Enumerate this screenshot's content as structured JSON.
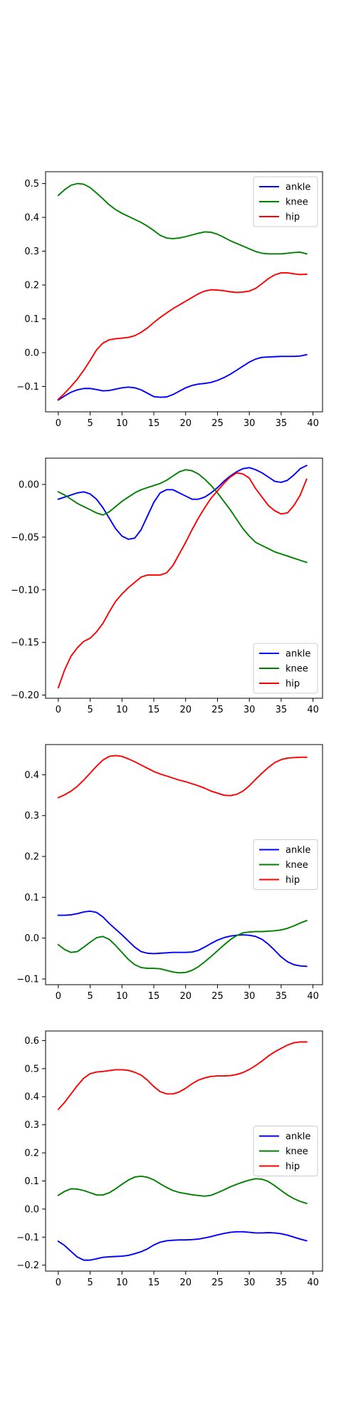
{
  "chart_data": [
    {
      "type": "line",
      "x": [
        0,
        1,
        2,
        3,
        4,
        5,
        6,
        7,
        8,
        9,
        10,
        11,
        12,
        13,
        14,
        15,
        16,
        17,
        18,
        19,
        20,
        21,
        22,
        23,
        24,
        25,
        26,
        27,
        28,
        29,
        30,
        31,
        32,
        33,
        34,
        35,
        36,
        37,
        38,
        39
      ],
      "xlim": [
        -2,
        41.5
      ],
      "ylim": [
        -0.175,
        0.535
      ],
      "xticks": [
        0,
        5,
        10,
        15,
        20,
        25,
        30,
        35,
        40
      ],
      "yticks": [
        -0.1,
        0.0,
        0.1,
        0.2,
        0.3,
        0.4,
        0.5
      ],
      "ytick_labels": [
        "−0.1",
        "0.0",
        "0.1",
        "0.2",
        "0.3",
        "0.4",
        "0.5"
      ],
      "legend_position": "top-right",
      "series": [
        {
          "name": "ankle",
          "color": "#0000ff",
          "values": [
            -0.14,
            -0.128,
            -0.117,
            -0.11,
            -0.106,
            -0.106,
            -0.109,
            -0.113,
            -0.112,
            -0.108,
            -0.104,
            -0.102,
            -0.104,
            -0.11,
            -0.12,
            -0.13,
            -0.132,
            -0.131,
            -0.124,
            -0.114,
            -0.104,
            -0.097,
            -0.093,
            -0.091,
            -0.088,
            -0.082,
            -0.074,
            -0.064,
            -0.052,
            -0.04,
            -0.028,
            -0.019,
            -0.014,
            -0.013,
            -0.012,
            -0.011,
            -0.011,
            -0.011,
            -0.01,
            -0.006
          ]
        },
        {
          "name": "knee",
          "color": "#008000",
          "values": [
            0.465,
            0.482,
            0.495,
            0.5,
            0.498,
            0.488,
            0.472,
            0.455,
            0.437,
            0.423,
            0.412,
            0.403,
            0.394,
            0.385,
            0.374,
            0.361,
            0.347,
            0.339,
            0.337,
            0.339,
            0.343,
            0.348,
            0.353,
            0.357,
            0.356,
            0.35,
            0.341,
            0.331,
            0.323,
            0.315,
            0.307,
            0.299,
            0.294,
            0.292,
            0.292,
            0.292,
            0.294,
            0.296,
            0.297,
            0.292
          ]
        },
        {
          "name": "hip",
          "color": "#ff0000",
          "values": [
            -0.138,
            -0.12,
            -0.1,
            -0.078,
            -0.052,
            -0.023,
            0.008,
            0.028,
            0.038,
            0.041,
            0.043,
            0.045,
            0.05,
            0.06,
            0.073,
            0.089,
            0.104,
            0.117,
            0.13,
            0.141,
            0.152,
            0.163,
            0.174,
            0.182,
            0.186,
            0.185,
            0.183,
            0.18,
            0.178,
            0.179,
            0.182,
            0.19,
            0.204,
            0.219,
            0.23,
            0.236,
            0.236,
            0.233,
            0.231,
            0.232
          ]
        }
      ]
    },
    {
      "type": "line",
      "x": [
        0,
        1,
        2,
        3,
        4,
        5,
        6,
        7,
        8,
        9,
        10,
        11,
        12,
        13,
        14,
        15,
        16,
        17,
        18,
        19,
        20,
        21,
        22,
        23,
        24,
        25,
        26,
        27,
        28,
        29,
        30,
        31,
        32,
        33,
        34,
        35,
        36,
        37,
        38,
        39
      ],
      "xlim": [
        -2,
        41.5
      ],
      "ylim": [
        -0.203,
        0.025
      ],
      "xticks": [
        0,
        5,
        10,
        15,
        20,
        25,
        30,
        35,
        40
      ],
      "yticks": [
        -0.2,
        -0.15,
        -0.1,
        -0.05,
        0.0
      ],
      "ytick_labels": [
        "−0.20",
        "−0.15",
        "−0.10",
        "−0.05",
        "0.00"
      ],
      "legend_position": "lower-right",
      "series": [
        {
          "name": "ankle",
          "color": "#0000ff",
          "values": [
            -0.014,
            -0.012,
            -0.01,
            -0.008,
            -0.007,
            -0.009,
            -0.014,
            -0.022,
            -0.032,
            -0.042,
            -0.049,
            -0.052,
            -0.051,
            -0.043,
            -0.03,
            -0.017,
            -0.008,
            -0.005,
            -0.005,
            -0.008,
            -0.011,
            -0.014,
            -0.014,
            -0.012,
            -0.008,
            -0.003,
            0.003,
            0.008,
            0.012,
            0.015,
            0.016,
            0.014,
            0.011,
            0.007,
            0.003,
            0.002,
            0.004,
            0.009,
            0.015,
            0.018
          ]
        },
        {
          "name": "knee",
          "color": "#008000",
          "values": [
            -0.007,
            -0.01,
            -0.014,
            -0.018,
            -0.021,
            -0.024,
            -0.027,
            -0.029,
            -0.026,
            -0.021,
            -0.016,
            -0.012,
            -0.008,
            -0.005,
            -0.003,
            -0.001,
            0.001,
            0.004,
            0.008,
            0.012,
            0.014,
            0.013,
            0.01,
            0.005,
            -0.001,
            -0.008,
            -0.016,
            -0.024,
            -0.033,
            -0.042,
            -0.049,
            -0.055,
            -0.058,
            -0.061,
            -0.064,
            -0.066,
            -0.068,
            -0.07,
            -0.072,
            -0.074
          ]
        },
        {
          "name": "hip",
          "color": "#ff0000",
          "values": [
            -0.193,
            -0.176,
            -0.163,
            -0.155,
            -0.149,
            -0.146,
            -0.14,
            -0.132,
            -0.121,
            -0.111,
            -0.104,
            -0.098,
            -0.093,
            -0.088,
            -0.086,
            -0.086,
            -0.086,
            -0.084,
            -0.077,
            -0.066,
            -0.055,
            -0.043,
            -0.032,
            -0.022,
            -0.013,
            -0.006,
            0.001,
            0.007,
            0.011,
            0.01,
            0.006,
            -0.004,
            -0.012,
            -0.02,
            -0.025,
            -0.028,
            -0.027,
            -0.02,
            -0.01,
            0.005
          ]
        }
      ]
    },
    {
      "type": "line",
      "x": [
        0,
        1,
        2,
        3,
        4,
        5,
        6,
        7,
        8,
        9,
        10,
        11,
        12,
        13,
        14,
        15,
        16,
        17,
        18,
        19,
        20,
        21,
        22,
        23,
        24,
        25,
        26,
        27,
        28,
        29,
        30,
        31,
        32,
        33,
        34,
        35,
        36,
        37,
        38,
        39
      ],
      "xlim": [
        -2,
        41.5
      ],
      "ylim": [
        -0.114,
        0.474
      ],
      "xticks": [
        0,
        5,
        10,
        15,
        20,
        25,
        30,
        35,
        40
      ],
      "yticks": [
        -0.1,
        0.0,
        0.1,
        0.2,
        0.3,
        0.4
      ],
      "ytick_labels": [
        "−0.1",
        "0.0",
        "0.1",
        "0.2",
        "0.3",
        "0.4"
      ],
      "legend_position": "center-right",
      "series": [
        {
          "name": "ankle",
          "color": "#0000ff",
          "values": [
            0.056,
            0.056,
            0.057,
            0.06,
            0.064,
            0.066,
            0.063,
            0.052,
            0.036,
            0.022,
            0.008,
            -0.007,
            -0.022,
            -0.033,
            -0.037,
            -0.038,
            -0.037,
            -0.036,
            -0.035,
            -0.035,
            -0.035,
            -0.034,
            -0.03,
            -0.022,
            -0.013,
            -0.005,
            0.001,
            0.005,
            0.007,
            0.008,
            0.007,
            0.004,
            -0.003,
            -0.015,
            -0.03,
            -0.046,
            -0.058,
            -0.065,
            -0.068,
            -0.069
          ]
        },
        {
          "name": "knee",
          "color": "#008000",
          "values": [
            -0.016,
            -0.028,
            -0.035,
            -0.033,
            -0.022,
            -0.01,
            0.001,
            0.004,
            -0.003,
            -0.018,
            -0.035,
            -0.052,
            -0.065,
            -0.072,
            -0.074,
            -0.074,
            -0.075,
            -0.079,
            -0.083,
            -0.085,
            -0.084,
            -0.079,
            -0.07,
            -0.058,
            -0.045,
            -0.031,
            -0.017,
            -0.004,
            0.006,
            0.013,
            0.015,
            0.016,
            0.016,
            0.017,
            0.018,
            0.02,
            0.024,
            0.03,
            0.037,
            0.043
          ]
        },
        {
          "name": "hip",
          "color": "#ff0000",
          "values": [
            0.344,
            0.351,
            0.36,
            0.372,
            0.387,
            0.404,
            0.421,
            0.436,
            0.445,
            0.447,
            0.445,
            0.439,
            0.432,
            0.424,
            0.416,
            0.408,
            0.402,
            0.397,
            0.392,
            0.387,
            0.383,
            0.378,
            0.373,
            0.367,
            0.36,
            0.355,
            0.35,
            0.349,
            0.352,
            0.36,
            0.373,
            0.389,
            0.404,
            0.418,
            0.43,
            0.437,
            0.441,
            0.442,
            0.443,
            0.443
          ]
        }
      ]
    },
    {
      "type": "line",
      "x": [
        0,
        1,
        2,
        3,
        4,
        5,
        6,
        7,
        8,
        9,
        10,
        11,
        12,
        13,
        14,
        15,
        16,
        17,
        18,
        19,
        20,
        21,
        22,
        23,
        24,
        25,
        26,
        27,
        28,
        29,
        30,
        31,
        32,
        33,
        34,
        35,
        36,
        37,
        38,
        39
      ],
      "xlim": [
        -2,
        41.5
      ],
      "ylim": [
        -0.221,
        0.634
      ],
      "xticks": [
        0,
        5,
        10,
        15,
        20,
        25,
        30,
        35,
        40
      ],
      "yticks": [
        -0.2,
        -0.1,
        0.0,
        0.1,
        0.2,
        0.3,
        0.4,
        0.5,
        0.6
      ],
      "ytick_labels": [
        "−0.2",
        "−0.1",
        "0.0",
        "0.1",
        "0.2",
        "0.3",
        "0.4",
        "0.5",
        "0.6"
      ],
      "legend_position": "center-right",
      "series": [
        {
          "name": "ankle",
          "color": "#0000ff",
          "values": [
            -0.115,
            -0.13,
            -0.151,
            -0.171,
            -0.182,
            -0.182,
            -0.177,
            -0.172,
            -0.17,
            -0.169,
            -0.168,
            -0.165,
            -0.159,
            -0.152,
            -0.142,
            -0.128,
            -0.118,
            -0.113,
            -0.111,
            -0.11,
            -0.11,
            -0.109,
            -0.107,
            -0.103,
            -0.098,
            -0.092,
            -0.087,
            -0.083,
            -0.081,
            -0.081,
            -0.083,
            -0.085,
            -0.085,
            -0.084,
            -0.085,
            -0.088,
            -0.093,
            -0.1,
            -0.107,
            -0.113
          ]
        },
        {
          "name": "knee",
          "color": "#008000",
          "values": [
            0.049,
            0.063,
            0.072,
            0.071,
            0.066,
            0.058,
            0.05,
            0.05,
            0.058,
            0.072,
            0.088,
            0.103,
            0.114,
            0.117,
            0.113,
            0.104,
            0.09,
            0.077,
            0.066,
            0.059,
            0.055,
            0.051,
            0.048,
            0.046,
            0.049,
            0.058,
            0.068,
            0.079,
            0.088,
            0.096,
            0.103,
            0.108,
            0.106,
            0.098,
            0.083,
            0.066,
            0.05,
            0.037,
            0.027,
            0.02
          ]
        },
        {
          "name": "hip",
          "color": "#ff0000",
          "values": [
            0.355,
            0.38,
            0.41,
            0.44,
            0.466,
            0.482,
            0.488,
            0.49,
            0.493,
            0.496,
            0.496,
            0.494,
            0.487,
            0.477,
            0.459,
            0.436,
            0.418,
            0.41,
            0.41,
            0.417,
            0.43,
            0.446,
            0.459,
            0.467,
            0.472,
            0.474,
            0.474,
            0.475,
            0.479,
            0.486,
            0.497,
            0.511,
            0.527,
            0.545,
            0.56,
            0.572,
            0.584,
            0.592,
            0.595,
            0.595
          ]
        }
      ]
    }
  ]
}
